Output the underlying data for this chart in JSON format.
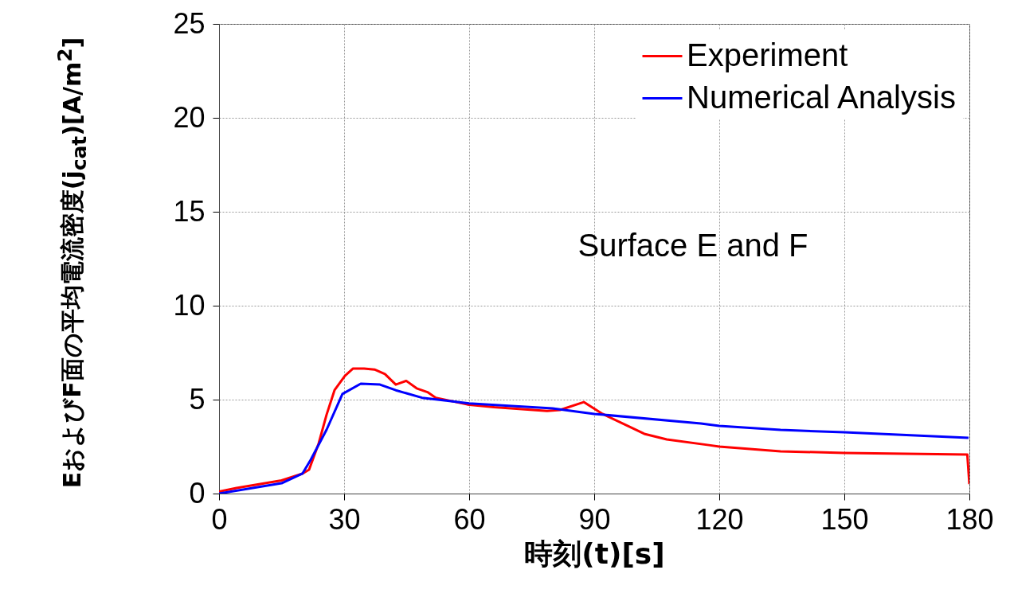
{
  "chart_data": {
    "type": "line",
    "xlabel": "時刻(t)[s]",
    "ylabel": "EおよびF面の平均電流密度(j$_{cat}$)[A/m$^{2}$]",
    "annotations": [
      "Surface E and F"
    ],
    "xlim": [
      0,
      180
    ],
    "xticks": [
      0,
      30,
      60,
      90,
      120,
      150,
      180
    ],
    "ylim": [
      0,
      25
    ],
    "yticks": [
      0,
      5,
      10,
      15,
      20,
      25
    ],
    "grid": true,
    "legend": "top right",
    "line_style": "solid",
    "marker": "none",
    "series": [
      {
        "name": "Experiment",
        "color": "#ff0000",
        "x": [
          0,
          4.2,
          15,
          20,
          21.6,
          23.9,
          25.8,
          27.7,
          30.2,
          32.1,
          34.8,
          37.3,
          39.8,
          42.4,
          44.9,
          47.4,
          50,
          52,
          59.6,
          66,
          78.7,
          81.8,
          87.5,
          92,
          99,
          102,
          107.4,
          117.5,
          120,
          134.7,
          150,
          179.5,
          180
        ],
        "values": [
          0.1,
          0.3,
          0.7,
          1.06,
          1.27,
          2.67,
          4.2,
          5.5,
          6.27,
          6.65,
          6.65,
          6.6,
          6.36,
          5.8,
          6.0,
          5.6,
          5.4,
          5.1,
          4.74,
          4.6,
          4.4,
          4.45,
          4.87,
          4.24,
          3.5,
          3.18,
          2.88,
          2.58,
          2.5,
          2.25,
          2.16,
          2.08,
          0.5
        ]
      },
      {
        "name": "Numerical Analysis",
        "color": "#0000ff",
        "x": [
          0,
          15,
          20,
          22,
          25.8,
          29.6,
          34,
          38.6,
          42.4,
          48.7,
          54.5,
          60,
          80,
          90,
          115.6,
          120,
          134.7,
          150,
          179.8
        ],
        "values": [
          0,
          0.55,
          1.06,
          1.8,
          3.4,
          5.3,
          5.85,
          5.8,
          5.5,
          5.1,
          4.95,
          4.8,
          4.53,
          4.24,
          3.73,
          3.6,
          3.39,
          3.26,
          2.97
        ]
      }
    ]
  }
}
